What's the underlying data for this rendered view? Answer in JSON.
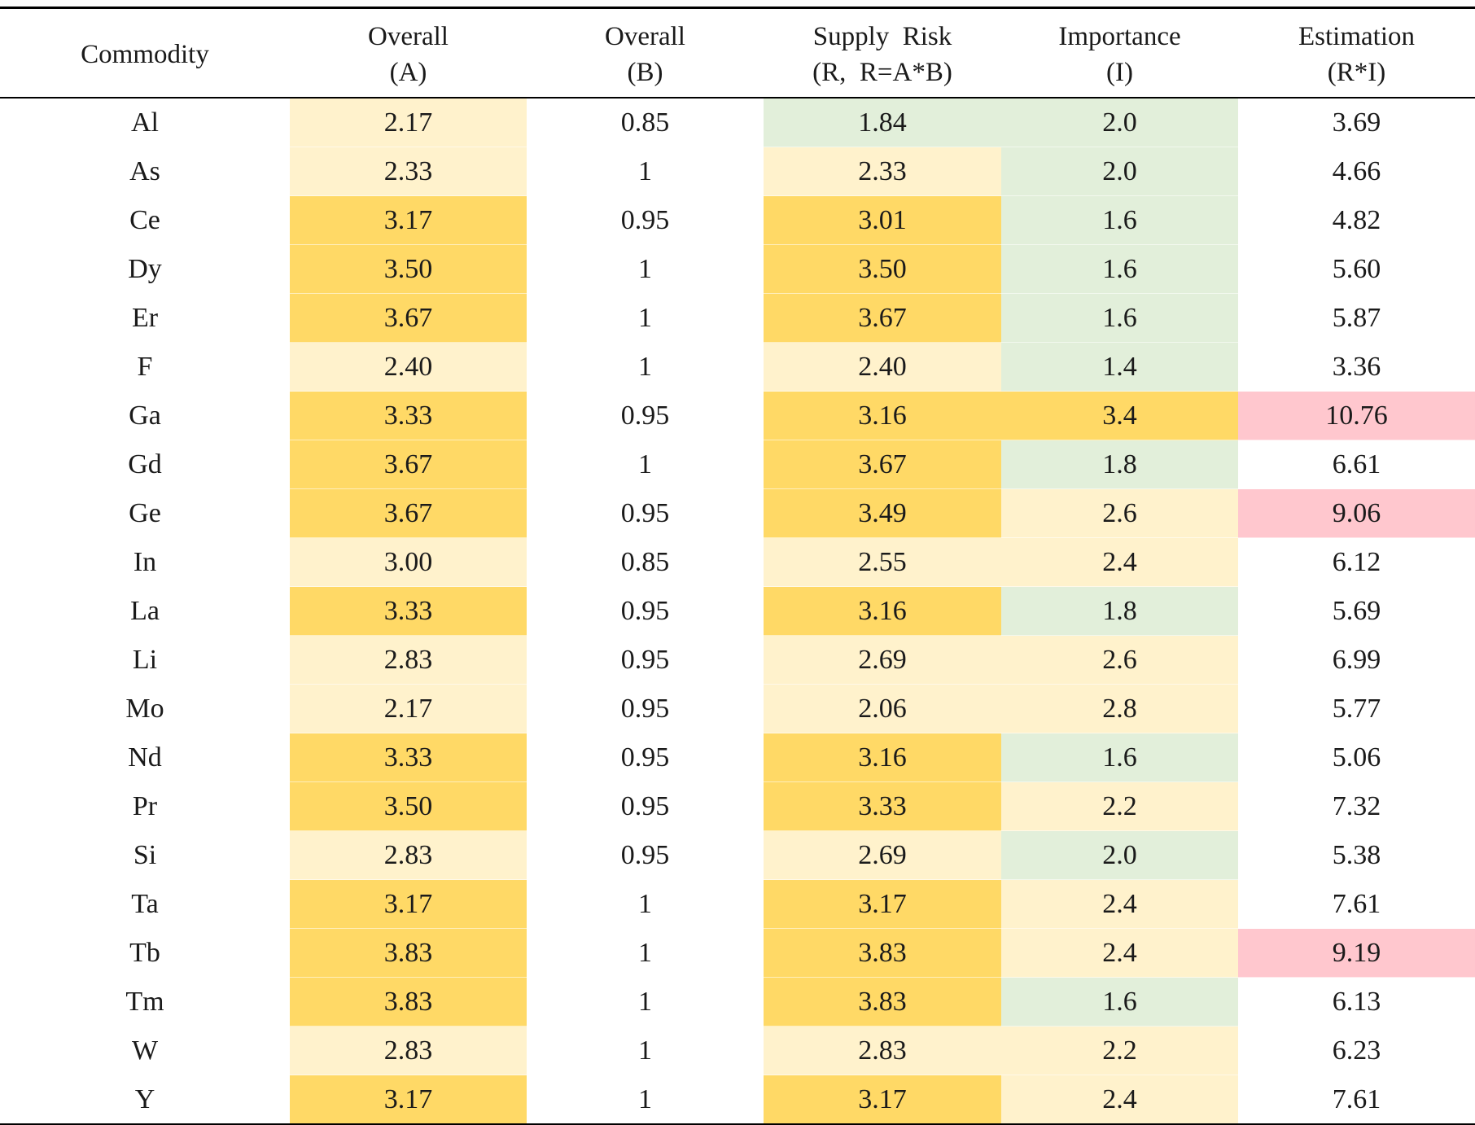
{
  "table": {
    "headers": [
      {
        "lines": [
          "Commodity"
        ]
      },
      {
        "lines": [
          "Overall",
          "(A)"
        ]
      },
      {
        "lines": [
          "Overall",
          "(B)"
        ]
      },
      {
        "lines": [
          "Supply  Risk",
          "(R,  R=A*B)"
        ]
      },
      {
        "lines": [
          "Importance",
          "(I)"
        ]
      },
      {
        "lines": [
          "Estimation",
          "(R*I)"
        ]
      }
    ],
    "palette": {
      "high": "#ffd966",
      "mid": "#fff2cc",
      "low": "#e2efda",
      "alert": "#ffc7ce"
    },
    "rows": [
      {
        "commodity": "Al",
        "a": "2.17",
        "b": "0.85",
        "r": "1.84",
        "i": "2.0",
        "est": "3.69",
        "a_level": "mid",
        "r_level": "low",
        "i_level": "low",
        "est_level": "none"
      },
      {
        "commodity": "As",
        "a": "2.33",
        "b": "1",
        "r": "2.33",
        "i": "2.0",
        "est": "4.66",
        "a_level": "mid",
        "r_level": "mid",
        "i_level": "low",
        "est_level": "none"
      },
      {
        "commodity": "Ce",
        "a": "3.17",
        "b": "0.95",
        "r": "3.01",
        "i": "1.6",
        "est": "4.82",
        "a_level": "high",
        "r_level": "high",
        "i_level": "low",
        "est_level": "none"
      },
      {
        "commodity": "Dy",
        "a": "3.50",
        "b": "1",
        "r": "3.50",
        "i": "1.6",
        "est": "5.60",
        "a_level": "high",
        "r_level": "high",
        "i_level": "low",
        "est_level": "none"
      },
      {
        "commodity": "Er",
        "a": "3.67",
        "b": "1",
        "r": "3.67",
        "i": "1.6",
        "est": "5.87",
        "a_level": "high",
        "r_level": "high",
        "i_level": "low",
        "est_level": "none"
      },
      {
        "commodity": "F",
        "a": "2.40",
        "b": "1",
        "r": "2.40",
        "i": "1.4",
        "est": "3.36",
        "a_level": "mid",
        "r_level": "mid",
        "i_level": "low",
        "est_level": "none"
      },
      {
        "commodity": "Ga",
        "a": "3.33",
        "b": "0.95",
        "r": "3.16",
        "i": "3.4",
        "est": "10.76",
        "a_level": "high",
        "r_level": "high",
        "i_level": "high",
        "est_level": "alert"
      },
      {
        "commodity": "Gd",
        "a": "3.67",
        "b": "1",
        "r": "3.67",
        "i": "1.8",
        "est": "6.61",
        "a_level": "high",
        "r_level": "high",
        "i_level": "low",
        "est_level": "none"
      },
      {
        "commodity": "Ge",
        "a": "3.67",
        "b": "0.95",
        "r": "3.49",
        "i": "2.6",
        "est": "9.06",
        "a_level": "high",
        "r_level": "high",
        "i_level": "mid",
        "est_level": "alert"
      },
      {
        "commodity": "In",
        "a": "3.00",
        "b": "0.85",
        "r": "2.55",
        "i": "2.4",
        "est": "6.12",
        "a_level": "mid",
        "r_level": "mid",
        "i_level": "mid",
        "est_level": "none"
      },
      {
        "commodity": "La",
        "a": "3.33",
        "b": "0.95",
        "r": "3.16",
        "i": "1.8",
        "est": "5.69",
        "a_level": "high",
        "r_level": "high",
        "i_level": "low",
        "est_level": "none"
      },
      {
        "commodity": "Li",
        "a": "2.83",
        "b": "0.95",
        "r": "2.69",
        "i": "2.6",
        "est": "6.99",
        "a_level": "mid",
        "r_level": "mid",
        "i_level": "mid",
        "est_level": "none"
      },
      {
        "commodity": "Mo",
        "a": "2.17",
        "b": "0.95",
        "r": "2.06",
        "i": "2.8",
        "est": "5.77",
        "a_level": "mid",
        "r_level": "mid",
        "i_level": "mid",
        "est_level": "none"
      },
      {
        "commodity": "Nd",
        "a": "3.33",
        "b": "0.95",
        "r": "3.16",
        "i": "1.6",
        "est": "5.06",
        "a_level": "high",
        "r_level": "high",
        "i_level": "low",
        "est_level": "none"
      },
      {
        "commodity": "Pr",
        "a": "3.50",
        "b": "0.95",
        "r": "3.33",
        "i": "2.2",
        "est": "7.32",
        "a_level": "high",
        "r_level": "high",
        "i_level": "mid",
        "est_level": "none"
      },
      {
        "commodity": "Si",
        "a": "2.83",
        "b": "0.95",
        "r": "2.69",
        "i": "2.0",
        "est": "5.38",
        "a_level": "mid",
        "r_level": "mid",
        "i_level": "low",
        "est_level": "none"
      },
      {
        "commodity": "Ta",
        "a": "3.17",
        "b": "1",
        "r": "3.17",
        "i": "2.4",
        "est": "7.61",
        "a_level": "high",
        "r_level": "high",
        "i_level": "mid",
        "est_level": "none"
      },
      {
        "commodity": "Tb",
        "a": "3.83",
        "b": "1",
        "r": "3.83",
        "i": "2.4",
        "est": "9.19",
        "a_level": "high",
        "r_level": "high",
        "i_level": "mid",
        "est_level": "alert"
      },
      {
        "commodity": "Tm",
        "a": "3.83",
        "b": "1",
        "r": "3.83",
        "i": "1.6",
        "est": "6.13",
        "a_level": "high",
        "r_level": "high",
        "i_level": "low",
        "est_level": "none"
      },
      {
        "commodity": "W",
        "a": "2.83",
        "b": "1",
        "r": "2.83",
        "i": "2.2",
        "est": "6.23",
        "a_level": "mid",
        "r_level": "mid",
        "i_level": "mid",
        "est_level": "none"
      },
      {
        "commodity": "Y",
        "a": "3.17",
        "b": "1",
        "r": "3.17",
        "i": "2.4",
        "est": "7.61",
        "a_level": "high",
        "r_level": "high",
        "i_level": "mid",
        "est_level": "none"
      }
    ]
  }
}
